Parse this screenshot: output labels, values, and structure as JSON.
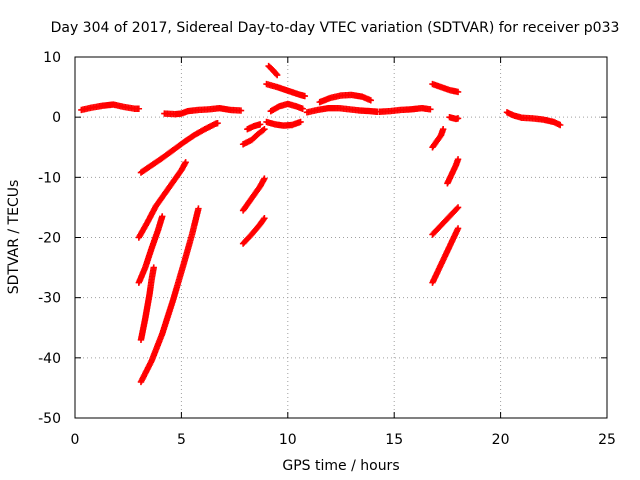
{
  "chart_data": {
    "type": "scatter",
    "title": "Day 304 of 2017, Sidereal Day-to-day VTEC variation (SDTVAR) for receiver p033",
    "xlabel": "GPS time / hours",
    "ylabel": "SDTVAR / TECUs",
    "xlim": [
      0,
      25
    ],
    "ylim": [
      -50,
      10
    ],
    "xticks": [
      0,
      5,
      10,
      15,
      20,
      25
    ],
    "yticks": [
      -50,
      -40,
      -30,
      -20,
      -10,
      0,
      10
    ],
    "grid": true,
    "marker": "plus",
    "color": "#ff0000",
    "series": [
      {
        "points": [
          [
            0.3,
            1.2
          ],
          [
            0.8,
            1.6
          ],
          [
            1.3,
            1.9
          ],
          [
            1.8,
            2.1
          ],
          [
            2.3,
            1.7
          ],
          [
            2.8,
            1.4
          ],
          [
            3.0,
            1.4
          ]
        ]
      },
      {
        "points": [
          [
            4.2,
            0.6
          ],
          [
            4.7,
            0.5
          ],
          [
            5.0,
            0.6
          ],
          [
            5.3,
            1.0
          ],
          [
            5.8,
            1.2
          ],
          [
            6.3,
            1.3
          ],
          [
            6.8,
            1.5
          ],
          [
            7.3,
            1.2
          ],
          [
            7.8,
            1.1
          ]
        ]
      },
      {
        "points": [
          [
            3.1,
            -9.2
          ],
          [
            3.6,
            -8.0
          ],
          [
            4.1,
            -6.8
          ],
          [
            4.6,
            -5.5
          ],
          [
            5.1,
            -4.2
          ],
          [
            5.6,
            -3.0
          ],
          [
            6.1,
            -2.0
          ],
          [
            6.6,
            -1.1
          ],
          [
            6.7,
            -1.0
          ]
        ]
      },
      {
        "points": [
          [
            3.0,
            -20.0
          ],
          [
            3.4,
            -17.5
          ],
          [
            3.8,
            -14.8
          ],
          [
            4.2,
            -12.8
          ],
          [
            4.6,
            -10.8
          ],
          [
            5.0,
            -8.8
          ],
          [
            5.2,
            -7.5
          ]
        ]
      },
      {
        "points": [
          [
            3.0,
            -27.5
          ],
          [
            3.3,
            -25.0
          ],
          [
            3.6,
            -21.8
          ],
          [
            3.9,
            -18.8
          ],
          [
            4.1,
            -16.5
          ]
        ]
      },
      {
        "points": [
          [
            3.1,
            -37.0
          ],
          [
            3.3,
            -33.5
          ],
          [
            3.5,
            -29.5
          ],
          [
            3.6,
            -27.0
          ],
          [
            3.7,
            -25.0
          ]
        ]
      },
      {
        "points": [
          [
            3.1,
            -44.0
          ],
          [
            3.6,
            -40.5
          ],
          [
            4.1,
            -36.0
          ],
          [
            4.6,
            -30.5
          ],
          [
            5.1,
            -24.5
          ],
          [
            5.5,
            -19.5
          ],
          [
            5.8,
            -15.2
          ]
        ]
      },
      {
        "points": [
          [
            7.9,
            -15.5
          ],
          [
            8.3,
            -13.5
          ],
          [
            8.7,
            -11.5
          ],
          [
            8.9,
            -10.2
          ]
        ]
      },
      {
        "points": [
          [
            7.9,
            -21.0
          ],
          [
            8.3,
            -19.5
          ],
          [
            8.7,
            -17.8
          ],
          [
            8.9,
            -16.8
          ]
        ]
      },
      {
        "points": [
          [
            7.9,
            -4.5
          ],
          [
            8.3,
            -3.8
          ],
          [
            8.6,
            -2.8
          ],
          [
            8.9,
            -2.0
          ]
        ]
      },
      {
        "points": [
          [
            8.1,
            -2.0
          ],
          [
            8.4,
            -1.5
          ],
          [
            8.7,
            -1.2
          ]
        ]
      },
      {
        "points": [
          [
            9.0,
            -0.8
          ],
          [
            9.4,
            -1.2
          ],
          [
            9.8,
            -1.4
          ],
          [
            10.2,
            -1.3
          ],
          [
            10.6,
            -0.8
          ]
        ]
      },
      {
        "points": [
          [
            9.1,
            8.5
          ],
          [
            9.3,
            7.8
          ],
          [
            9.5,
            7.0
          ]
        ]
      },
      {
        "points": [
          [
            9.0,
            5.5
          ],
          [
            9.5,
            5.0
          ],
          [
            10.0,
            4.4
          ],
          [
            10.5,
            3.8
          ],
          [
            10.8,
            3.5
          ]
        ]
      },
      {
        "points": [
          [
            9.2,
            1.0
          ],
          [
            9.6,
            1.8
          ],
          [
            10.0,
            2.2
          ],
          [
            10.4,
            1.8
          ],
          [
            10.7,
            1.4
          ]
        ]
      },
      {
        "points": [
          [
            10.9,
            0.8
          ],
          [
            11.4,
            1.2
          ],
          [
            11.9,
            1.5
          ],
          [
            12.4,
            1.5
          ],
          [
            12.9,
            1.3
          ],
          [
            13.4,
            1.1
          ],
          [
            13.9,
            1.0
          ],
          [
            14.2,
            0.9
          ]
        ]
      },
      {
        "points": [
          [
            11.5,
            2.5
          ],
          [
            12.0,
            3.2
          ],
          [
            12.5,
            3.6
          ],
          [
            13.0,
            3.7
          ],
          [
            13.5,
            3.4
          ],
          [
            13.9,
            2.8
          ]
        ]
      },
      {
        "points": [
          [
            14.3,
            0.9
          ],
          [
            14.8,
            1.0
          ],
          [
            15.3,
            1.2
          ],
          [
            15.8,
            1.3
          ],
          [
            16.3,
            1.5
          ],
          [
            16.7,
            1.3
          ]
        ]
      },
      {
        "points": [
          [
            16.8,
            5.5
          ],
          [
            17.2,
            5.0
          ],
          [
            17.6,
            4.5
          ],
          [
            18.0,
            4.2
          ]
        ]
      },
      {
        "points": [
          [
            16.8,
            -5.0
          ],
          [
            17.0,
            -4.0
          ],
          [
            17.2,
            -3.0
          ],
          [
            17.3,
            -2.0
          ]
        ]
      },
      {
        "points": [
          [
            17.6,
            0.0
          ],
          [
            17.9,
            -0.3
          ],
          [
            18.0,
            -0.2
          ]
        ]
      },
      {
        "points": [
          [
            17.5,
            -11.0
          ],
          [
            17.7,
            -9.5
          ],
          [
            17.9,
            -8.0
          ],
          [
            18.0,
            -7.0
          ]
        ]
      },
      {
        "points": [
          [
            16.8,
            -19.5
          ],
          [
            17.2,
            -18.0
          ],
          [
            17.6,
            -16.5
          ],
          [
            18.0,
            -15.0
          ]
        ]
      },
      {
        "points": [
          [
            16.8,
            -27.5
          ],
          [
            17.2,
            -24.5
          ],
          [
            17.6,
            -21.5
          ],
          [
            18.0,
            -18.5
          ]
        ]
      },
      {
        "points": [
          [
            20.3,
            0.8
          ],
          [
            20.6,
            0.3
          ],
          [
            21.0,
            -0.1
          ],
          [
            21.5,
            -0.2
          ],
          [
            22.0,
            -0.4
          ],
          [
            22.5,
            -0.8
          ],
          [
            22.8,
            -1.3
          ]
        ]
      }
    ]
  }
}
